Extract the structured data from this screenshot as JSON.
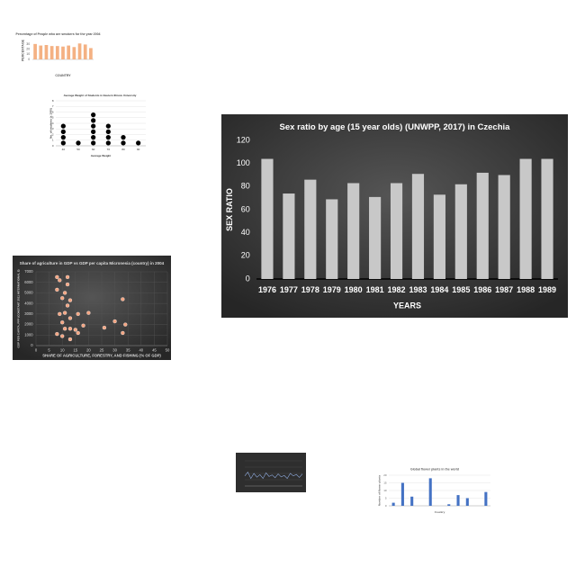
{
  "chart_data": [
    {
      "type": "bar",
      "title": "Sex ratio by age (15 year olds) (UNWPP, 2017) in Czechia",
      "x_label": "YEARS",
      "y_label": "SEX RATIO",
      "categories": [
        "1976",
        "1977",
        "1978",
        "1979",
        "1980",
        "1981",
        "1982",
        "1983",
        "1984",
        "1985",
        "1986",
        "1987",
        "1988",
        "1989"
      ],
      "values": [
        104,
        74,
        86,
        69,
        83,
        71,
        83,
        91,
        73,
        82,
        92,
        90,
        104,
        104
      ],
      "color": "#c8c8c8",
      "background": "#3a3a3a",
      "text_color": "#ffffff",
      "ylim": [
        0,
        120
      ],
      "yticks": [
        0,
        20,
        40,
        60,
        80,
        100,
        120
      ],
      "grid": false
    },
    {
      "type": "bar",
      "title": "Percentage of People who are smokers for the year 2004",
      "x_label": "COUNTRY",
      "y_label": "PERCENTAGE",
      "categories": [
        null,
        null,
        null,
        null,
        null,
        null,
        null,
        null,
        null,
        null,
        null
      ],
      "values": [
        30,
        27,
        28,
        26,
        26,
        25,
        27,
        24,
        31,
        29,
        22
      ],
      "color": "#f4b183",
      "background": "#ffffff",
      "text_color": "#555555",
      "ylim": [
        0,
        35
      ],
      "yticks": [
        0,
        10,
        20,
        30
      ],
      "grid": false
    },
    {
      "type": "dot",
      "title": "Average Weight of Students in Eastern Illinois University",
      "x_label": "Average Weight",
      "y_label": "No. of students (x 1000)",
      "categories": [
        "40",
        "50",
        "60",
        "70",
        "80",
        "90"
      ],
      "values": [
        4,
        1,
        6,
        4,
        2,
        1
      ],
      "color": "#000000",
      "background": "#ffffff",
      "text_color": "#333333",
      "ylim": [
        0,
        8
      ],
      "yticks": [
        0,
        1,
        2,
        3,
        4,
        5,
        6,
        7,
        8
      ],
      "grid": true
    },
    {
      "type": "scatter",
      "title": "Share of agriculture in GDP vs GDP per capita Micronesia (country) in 2004",
      "x_label": "SHARE OF AGRICULTURE, FORESTRY, AND FISHING (% OF GDP)",
      "y_label": "GDP PER CAPITA, PPP (CONSTANT 2011 INTERNATIONAL $)",
      "x": [
        8,
        9,
        12,
        12,
        8,
        11,
        10,
        13,
        12,
        33,
        9,
        11,
        16,
        20,
        13,
        10,
        18,
        30,
        34,
        26,
        11,
        13,
        15,
        8,
        10,
        13,
        33,
        16
      ],
      "values": [
        6500,
        6200,
        6500,
        5800,
        5300,
        5000,
        4500,
        4300,
        3800,
        4400,
        3000,
        3100,
        3000,
        3100,
        2600,
        2200,
        1900,
        2300,
        2000,
        1700,
        1600,
        1600,
        1500,
        1100,
        900,
        600,
        1200,
        1200
      ],
      "color": "#f4a582",
      "background": "#333333",
      "text_color": "#dddddd",
      "xlim": [
        0,
        50
      ],
      "xticks": [
        0,
        5,
        10,
        15,
        20,
        25,
        30,
        35,
        40,
        45,
        50
      ],
      "ylim": [
        0,
        7000
      ],
      "yticks": [
        0,
        1000,
        2000,
        3000,
        4000,
        5000,
        6000,
        7000
      ],
      "grid": true
    },
    {
      "type": "line",
      "values": [
        40,
        55,
        30,
        50,
        35,
        45,
        30,
        52,
        38,
        44,
        33,
        48,
        36,
        42,
        30,
        50,
        40,
        46,
        34,
        48
      ],
      "color": "#8faadc",
      "background": "#2e2e2e",
      "text_color": "#cccccc",
      "ylim": [
        0,
        100
      ],
      "grid": true
    },
    {
      "type": "bar",
      "title": "Global flower plants in the world",
      "x_label": "Country",
      "y_label": "Number of flower plants",
      "categories": [
        null,
        null,
        null,
        null,
        null,
        null,
        null,
        null,
        null,
        null,
        null
      ],
      "values": [
        2,
        15,
        6,
        0,
        18,
        0,
        1,
        7,
        5,
        0,
        9
      ],
      "color": "#4472c4",
      "background": "#ffffff",
      "text_color": "#666666",
      "ylim": [
        0,
        20
      ],
      "yticks": [
        0,
        5,
        10,
        15,
        20
      ],
      "grid": true
    }
  ]
}
